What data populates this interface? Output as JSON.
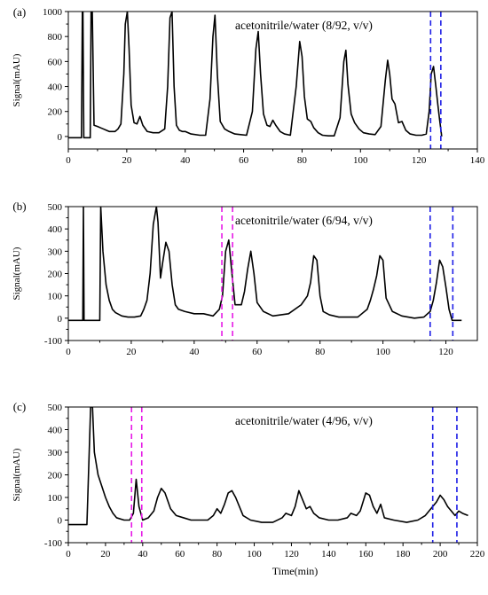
{
  "colors": {
    "trace": "#000000",
    "blue_marker": "#1f1fe6",
    "magenta_marker": "#e619e6",
    "axis": "#000000"
  },
  "chart_data": [
    {
      "type": "line",
      "panel_label": "(a)",
      "annotation": "acetonitrile/water (8/92, v/v)",
      "ylabel": "Signal(mAU)",
      "xlabel": "",
      "xlim": [
        0,
        140
      ],
      "ylim": [
        -100,
        1000
      ],
      "xticks": [
        0,
        20,
        40,
        60,
        80,
        100,
        120,
        140
      ],
      "yticks": [
        0,
        200,
        400,
        600,
        800,
        1000
      ],
      "grid": false,
      "series": [
        {
          "x": [
            0,
            4.5,
            4.8,
            5.0,
            5.3,
            7.5,
            7.8,
            8.2,
            8.8,
            10,
            11,
            12,
            13,
            14,
            15,
            16,
            17,
            18,
            19,
            19.5,
            20.2,
            20.8,
            21.5,
            22.5,
            23.5,
            24.5,
            25.5,
            27,
            29,
            31,
            33,
            34,
            34.8,
            35.5,
            36.2,
            37,
            38,
            39,
            40,
            42,
            45,
            47,
            48.5,
            49.5,
            50.2,
            51,
            52,
            53.5,
            55,
            57,
            59,
            61,
            63,
            64.2,
            65,
            65.8,
            66.8,
            68,
            69,
            70,
            71,
            72.5,
            74,
            76,
            78,
            79.2,
            80,
            80.8,
            81.8,
            83,
            84,
            85.5,
            87,
            89,
            91,
            93,
            94.3,
            95,
            95.7,
            96.8,
            98,
            99.5,
            101,
            103,
            105,
            107,
            108.5,
            109.3,
            110,
            110.8,
            111.8,
            113,
            114.2,
            115.5,
            117,
            119,
            121,
            122.5,
            123.5,
            124.2,
            125,
            125.8,
            126.5,
            127,
            127.8
          ],
          "y": [
            -10,
            -10,
            1000,
            1000,
            -10,
            -10,
            1000,
            1000,
            90,
            80,
            70,
            60,
            50,
            40,
            40,
            40,
            60,
            100,
            500,
            900,
            1000,
            700,
            250,
            110,
            100,
            160,
            90,
            40,
            30,
            30,
            60,
            400,
            950,
            1000,
            400,
            90,
            50,
            40,
            40,
            20,
            10,
            10,
            300,
            800,
            970,
            500,
            120,
            60,
            40,
            20,
            15,
            10,
            200,
            700,
            840,
            500,
            180,
            90,
            80,
            130,
            90,
            40,
            20,
            10,
            400,
            760,
            640,
            320,
            140,
            120,
            70,
            30,
            10,
            5,
            5,
            150,
            600,
            690,
            420,
            180,
            110,
            60,
            30,
            20,
            15,
            80,
            450,
            610,
            500,
            300,
            260,
            110,
            120,
            50,
            20,
            10,
            10,
            20,
            200,
            500,
            560,
            400,
            250,
            150,
            0
          ]
        }
      ],
      "markers": [
        {
          "x": 124,
          "color": "blue"
        },
        {
          "x": 127.5,
          "color": "blue"
        }
      ]
    },
    {
      "type": "line",
      "panel_label": "(b)",
      "annotation": "acetonitrile/water (6/94, v/v)",
      "ylabel": "Signal(mAU)",
      "xlabel": "",
      "xlim": [
        0,
        130
      ],
      "ylim": [
        -100,
        500
      ],
      "xticks": [
        0,
        20,
        40,
        60,
        80,
        100,
        120
      ],
      "yticks": [
        -100,
        0,
        100,
        200,
        300,
        400,
        500
      ],
      "grid": false,
      "series": [
        {
          "x": [
            0,
            4.6,
            4.8,
            5.0,
            10,
            10.3,
            11,
            12,
            13,
            14,
            15,
            17,
            19,
            21,
            23,
            24,
            25,
            26,
            27,
            28,
            28.5,
            29.3,
            30,
            31,
            32,
            33,
            34,
            35,
            37,
            40,
            43,
            46,
            47,
            48,
            49,
            50,
            51,
            52,
            53,
            55,
            56,
            57,
            58,
            59,
            60,
            62,
            65,
            70,
            74,
            76,
            77,
            78,
            79,
            80,
            81,
            83,
            86,
            92,
            95,
            96,
            97,
            98,
            99,
            100,
            101,
            103,
            106,
            110,
            113,
            115,
            116,
            117,
            118,
            119,
            120,
            121,
            122,
            123,
            125
          ],
          "y": [
            -10,
            -10,
            500,
            -10,
            -10,
            500,
            300,
            150,
            80,
            40,
            25,
            10,
            5,
            5,
            10,
            40,
            80,
            200,
            420,
            500,
            430,
            180,
            250,
            340,
            300,
            150,
            60,
            40,
            30,
            20,
            20,
            10,
            25,
            40,
            100,
            300,
            350,
            200,
            60,
            60,
            120,
            220,
            300,
            200,
            70,
            30,
            10,
            20,
            60,
            100,
            160,
            280,
            260,
            100,
            30,
            15,
            5,
            5,
            40,
            80,
            130,
            190,
            280,
            260,
            90,
            30,
            10,
            0,
            5,
            30,
            80,
            160,
            260,
            230,
            140,
            40,
            -10,
            -10,
            -10
          ]
        }
      ],
      "markers": [
        {
          "x": 48.8,
          "color": "magenta"
        },
        {
          "x": 52.2,
          "color": "magenta"
        },
        {
          "x": 115,
          "color": "blue"
        },
        {
          "x": 122.2,
          "color": "blue"
        }
      ]
    },
    {
      "type": "line",
      "panel_label": "(c)",
      "annotation": "acetonitrile/water (4/96, v/v)",
      "ylabel": "Signal(mAU)",
      "xlabel": "Time(min)",
      "xlim": [
        0,
        220
      ],
      "ylim": [
        -100,
        500
      ],
      "xticks": [
        0,
        20,
        40,
        60,
        80,
        100,
        120,
        140,
        160,
        180,
        200,
        220
      ],
      "yticks": [
        -100,
        0,
        100,
        200,
        300,
        400,
        500
      ],
      "grid": false,
      "series": [
        {
          "x": [
            0,
            4,
            8,
            10,
            12,
            13,
            14,
            16,
            18,
            20,
            22,
            24,
            26,
            30,
            33,
            35,
            36.5,
            38,
            40,
            43,
            46,
            48,
            50,
            52,
            55,
            58,
            62,
            66,
            70,
            75,
            78,
            80,
            82,
            84,
            86,
            88,
            90,
            92,
            94,
            98,
            104,
            110,
            115,
            117,
            120,
            122,
            124,
            126,
            128,
            130,
            132,
            135,
            140,
            145,
            150,
            152,
            155,
            157,
            160,
            162,
            164,
            166,
            168,
            170,
            175,
            182,
            188,
            192,
            195,
            198,
            200,
            202,
            204,
            206,
            208,
            210,
            212,
            215
          ],
          "y": [
            -20,
            -20,
            -20,
            -20,
            500,
            500,
            300,
            200,
            150,
            100,
            60,
            30,
            10,
            0,
            0,
            30,
            180,
            60,
            0,
            10,
            40,
            100,
            140,
            120,
            50,
            20,
            10,
            0,
            0,
            0,
            20,
            50,
            30,
            70,
            120,
            130,
            100,
            60,
            20,
            0,
            -10,
            -10,
            10,
            30,
            20,
            60,
            130,
            90,
            50,
            60,
            30,
            10,
            0,
            0,
            10,
            30,
            20,
            40,
            120,
            110,
            60,
            30,
            70,
            10,
            0,
            -10,
            0,
            20,
            50,
            80,
            110,
            90,
            60,
            40,
            20,
            40,
            30,
            20
          ]
        }
      ],
      "markers": [
        {
          "x": 34,
          "color": "magenta"
        },
        {
          "x": 39.5,
          "color": "magenta"
        },
        {
          "x": 196,
          "color": "blue"
        },
        {
          "x": 209,
          "color": "blue"
        }
      ]
    }
  ]
}
